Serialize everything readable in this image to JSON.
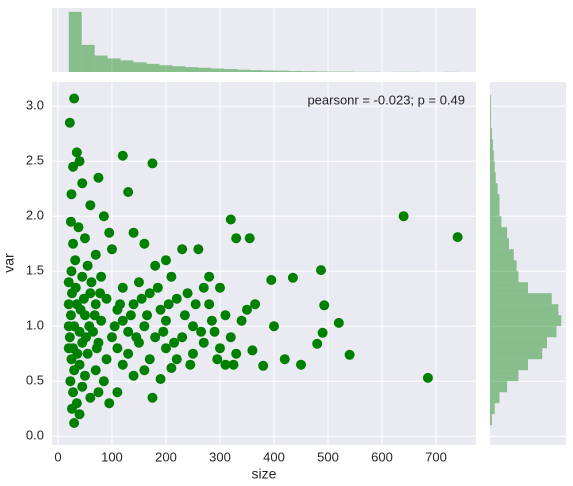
{
  "chart_data": [
    {
      "type": "scatter",
      "xlabel": "size",
      "ylabel": "var",
      "annotation": "pearsonr = -0.023; p = 0.49",
      "color": "#008000",
      "grid": true,
      "xlim": [
        -11,
        774
      ],
      "ylim": [
        -0.08,
        3.22
      ],
      "xticks": [
        0,
        100,
        200,
        300,
        400,
        500,
        600,
        700
      ],
      "yticks": [
        {
          "value": 0,
          "label": "0.0"
        },
        {
          "value": 0.5,
          "label": "0.5"
        },
        {
          "value": 1,
          "label": "1.0"
        },
        {
          "value": 1.5,
          "label": "1.5"
        },
        {
          "value": 2,
          "label": "2.0"
        },
        {
          "value": 2.5,
          "label": "2.5"
        },
        {
          "value": 3,
          "label": "3.0"
        }
      ],
      "x": [
        30,
        22,
        35,
        40,
        28,
        45,
        25,
        75,
        120,
        175,
        130,
        60,
        85,
        24,
        38,
        95,
        50,
        28,
        140,
        160,
        100,
        70,
        32,
        55,
        200,
        230,
        260,
        180,
        25,
        45,
        80,
        150,
        210,
        270,
        120,
        26,
        60,
        90,
        170,
        240,
        300,
        35,
        70,
        110,
        140,
        190,
        220,
        280,
        310,
        350,
        24,
        50,
        80,
        120,
        160,
        200,
        250,
        290,
        340,
        30,
        40,
        65,
        100,
        130,
        180,
        230,
        270,
        320,
        22,
        45,
        75,
        110,
        150,
        200,
        250,
        300,
        28,
        55,
        90,
        130,
        170,
        220,
        330,
        25,
        40,
        70,
        120,
        160,
        210,
        310,
        30,
        50,
        85,
        140,
        190,
        23,
        45,
        75,
        110,
        175,
        28,
        35,
        60,
        26,
        30,
        40,
        95,
        640,
        740,
        685,
        540,
        520,
        493,
        490,
        480,
        487,
        435,
        450,
        420,
        400,
        395,
        380,
        365,
        360,
        320,
        330,
        355,
        325,
        280,
        20,
        20,
        20,
        20,
        33,
        36,
        42,
        48,
        52,
        58,
        62,
        68,
        72,
        78,
        105,
        115,
        135,
        145,
        155,
        165,
        185,
        195,
        205,
        215,
        235,
        245,
        255,
        265,
        285,
        295
      ],
      "values": [
        3.07,
        2.85,
        2.58,
        2.5,
        2.45,
        2.3,
        2.2,
        2.35,
        2.55,
        2.48,
        2.22,
        2.1,
        2.0,
        1.95,
        1.9,
        1.85,
        1.8,
        1.75,
        1.85,
        1.75,
        1.7,
        1.65,
        1.6,
        1.55,
        1.6,
        1.7,
        1.7,
        1.55,
        1.5,
        1.45,
        1.45,
        1.4,
        1.45,
        1.35,
        1.35,
        1.3,
        1.3,
        1.25,
        1.3,
        1.3,
        1.35,
        1.2,
        1.2,
        1.15,
        1.2,
        1.15,
        1.25,
        1.2,
        1.1,
        1.15,
        1.1,
        1.1,
        1.05,
        1.05,
        1.0,
        1.05,
        1.0,
        0.95,
        1.05,
        1.0,
        0.95,
        0.95,
        0.9,
        0.95,
        0.9,
        0.9,
        0.85,
        0.9,
        0.9,
        0.85,
        0.85,
        0.8,
        0.85,
        0.8,
        0.75,
        0.8,
        0.8,
        0.75,
        0.7,
        0.75,
        0.7,
        0.7,
        0.75,
        0.7,
        0.65,
        0.6,
        0.65,
        0.6,
        0.62,
        0.65,
        0.6,
        0.55,
        0.5,
        0.55,
        0.52,
        0.5,
        0.45,
        0.4,
        0.4,
        0.35,
        0.4,
        0.3,
        0.35,
        0.25,
        0.12,
        0.2,
        0.3,
        2.0,
        1.81,
        0.53,
        0.74,
        1.03,
        1.19,
        0.94,
        0.84,
        1.51,
        1.44,
        0.65,
        0.7,
        1.0,
        1.42,
        0.64,
        1.2,
        0.78,
        1.97,
        1.8,
        1.8,
        0.65,
        1.45,
        1.4,
        1.2,
        0.8,
        1.0,
        1.35,
        0.75,
        1.15,
        1.25,
        0.9,
        1.0,
        1.4,
        1.1,
        0.8,
        1.3,
        1.0,
        1.2,
        1.1,
        0.9,
        1.25,
        1.1,
        1.35,
        0.95,
        1.2,
        0.85,
        1.1,
        0.65,
        1.2,
        0.95,
        1.05,
        0.7
      ]
    },
    {
      "type": "histogram",
      "orientation": "vertical",
      "color": "#008000",
      "bins": [
        20,
        44,
        68,
        92,
        116,
        140,
        164,
        188,
        212,
        236,
        260,
        284,
        308,
        332,
        356,
        380,
        404,
        428,
        452,
        476,
        500,
        524,
        548,
        572,
        596,
        620,
        644,
        668,
        692,
        716,
        740
      ],
      "values": [
        310,
        140,
        85,
        70,
        60,
        50,
        42,
        35,
        30,
        25,
        22,
        18,
        15,
        12,
        10,
        8,
        7,
        5,
        4,
        3,
        2,
        2,
        1,
        1,
        0,
        1,
        1,
        0,
        0,
        1
      ],
      "ylim": [
        0,
        330
      ]
    },
    {
      "type": "histogram",
      "orientation": "horizontal",
      "color": "#008000",
      "bins": [
        0.1,
        0.2,
        0.3,
        0.4,
        0.5,
        0.6,
        0.7,
        0.8,
        0.9,
        1.0,
        1.1,
        1.2,
        1.3,
        1.4,
        1.5,
        1.6,
        1.7,
        1.8,
        1.9,
        2.0,
        2.1,
        2.2,
        2.3,
        2.4,
        2.5,
        2.6,
        2.7,
        2.8,
        2.9,
        3.0,
        3.1
      ],
      "values": [
        2,
        5,
        10,
        18,
        30,
        40,
        55,
        60,
        70,
        75,
        72,
        65,
        40,
        30,
        28,
        25,
        20,
        18,
        12,
        10,
        10,
        8,
        6,
        5,
        4,
        3,
        2,
        1,
        1,
        1
      ],
      "xlim": [
        0,
        80
      ]
    }
  ]
}
